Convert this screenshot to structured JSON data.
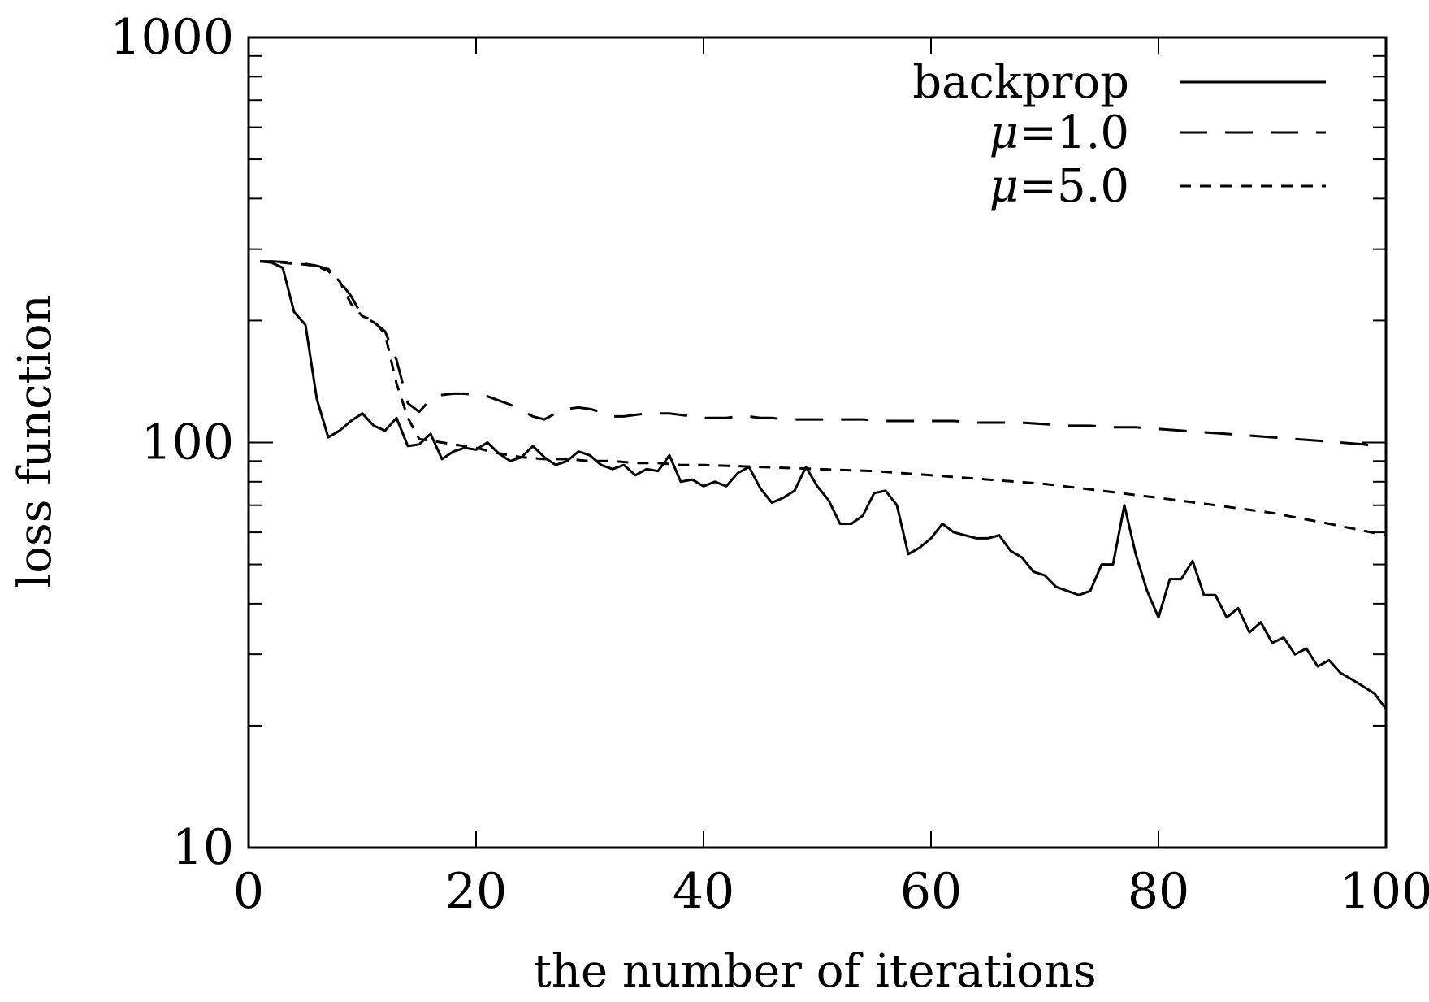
{
  "chart_data": {
    "type": "line",
    "title": "",
    "xlabel": "the number of iterations",
    "ylabel": "loss function",
    "xlim": [
      0,
      100
    ],
    "ylim": [
      10,
      1000
    ],
    "yscale": "log",
    "grid": false,
    "legend_position": "top-right",
    "xticks": [
      "0",
      "20",
      "40",
      "60",
      "80",
      "100"
    ],
    "yticks": [
      "10",
      "100",
      "1000"
    ],
    "series": [
      {
        "name": "backprop",
        "name_display": "backprop",
        "style": "solid",
        "x": [
          1,
          2,
          3,
          4,
          5,
          6,
          7,
          8,
          9,
          10,
          11,
          12,
          13,
          14,
          15,
          16,
          17,
          18,
          19,
          20,
          21,
          22,
          23,
          24,
          25,
          26,
          27,
          28,
          29,
          30,
          31,
          32,
          33,
          34,
          35,
          36,
          37,
          38,
          39,
          40,
          41,
          42,
          43,
          44,
          45,
          46,
          47,
          48,
          49,
          50,
          51,
          52,
          53,
          54,
          55,
          56,
          57,
          58,
          59,
          60,
          61,
          62,
          63,
          64,
          65,
          66,
          67,
          68,
          69,
          70,
          71,
          72,
          73,
          74,
          75,
          76,
          77,
          78,
          79,
          80,
          81,
          82,
          83,
          84,
          85,
          86,
          87,
          88,
          89,
          90,
          91,
          92,
          93,
          94,
          95,
          96,
          97,
          98,
          99,
          100
        ],
        "y": [
          280,
          278,
          270,
          210,
          195,
          128,
          103,
          107,
          113,
          118,
          110,
          107,
          115,
          98,
          99,
          105,
          91,
          95,
          97,
          96,
          100,
          94,
          90,
          92,
          98,
          92,
          88,
          90,
          95,
          93,
          88,
          86,
          88,
          83,
          86,
          85,
          93,
          80,
          81,
          78,
          80,
          78,
          84,
          87,
          77,
          71,
          73,
          76,
          87,
          78,
          72,
          63,
          63,
          66,
          75,
          76,
          70,
          53,
          55,
          58,
          63,
          60,
          59,
          58,
          58,
          59,
          54,
          52,
          48,
          47,
          44,
          43,
          42,
          43,
          50,
          50,
          70,
          53,
          43,
          37,
          46,
          46,
          51,
          42,
          42,
          37,
          39,
          34,
          36,
          32,
          33,
          30,
          31,
          28,
          29,
          27,
          26,
          25,
          24,
          22
        ]
      },
      {
        "name": "μ=1.0",
        "name_prefix": "μ",
        "name_suffix": "=1.0",
        "style": "long-dash",
        "x": [
          1,
          2,
          3,
          4,
          5,
          6,
          7,
          8,
          9,
          10,
          11,
          12,
          13,
          14,
          15,
          16,
          17,
          18,
          19,
          20,
          21,
          22,
          23,
          24,
          25,
          26,
          27,
          28,
          29,
          30,
          31,
          32,
          33,
          34,
          35,
          36,
          37,
          38,
          39,
          40,
          41,
          42,
          43,
          44,
          45,
          46,
          47,
          48,
          49,
          50,
          52,
          54,
          56,
          58,
          60,
          62,
          64,
          66,
          68,
          70,
          72,
          74,
          76,
          78,
          80,
          82,
          84,
          86,
          88,
          90,
          92,
          94,
          96,
          98,
          100
        ],
        "y": [
          280,
          280,
          279,
          278,
          276,
          273,
          268,
          250,
          230,
          205,
          198,
          188,
          160,
          125,
          119,
          128,
          131,
          132,
          132,
          131,
          130,
          127,
          124,
          120,
          116,
          114,
          118,
          121,
          122,
          121,
          119,
          116,
          116,
          117,
          118,
          118,
          118,
          117,
          116,
          115,
          115,
          115,
          116,
          116,
          115,
          115,
          114,
          114,
          114,
          114,
          114,
          114,
          113,
          113,
          113,
          113,
          112,
          112,
          112,
          111,
          110,
          110,
          109,
          109,
          108,
          107,
          106,
          105,
          104,
          103,
          102,
          101,
          100,
          99,
          97
        ]
      },
      {
        "name": "μ=5.0",
        "name_prefix": "μ",
        "name_suffix": "=5.0",
        "style": "short-dash",
        "x": [
          1,
          2,
          3,
          4,
          5,
          6,
          7,
          8,
          9,
          10,
          11,
          12,
          13,
          14,
          15,
          16,
          17,
          18,
          19,
          20,
          22,
          24,
          26,
          28,
          30,
          32,
          34,
          36,
          38,
          40,
          45,
          50,
          55,
          60,
          65,
          70,
          75,
          80,
          85,
          90,
          95,
          100
        ],
        "y": [
          280,
          279,
          278,
          276,
          275,
          272,
          265,
          250,
          220,
          205,
          200,
          185,
          140,
          115,
          102,
          101,
          100,
          99,
          98,
          97,
          94,
          92,
          91,
          91,
          90,
          90,
          89,
          89,
          88,
          88,
          87,
          86,
          85,
          83,
          81,
          79,
          76,
          73,
          70,
          67,
          63,
          59
        ]
      }
    ]
  }
}
